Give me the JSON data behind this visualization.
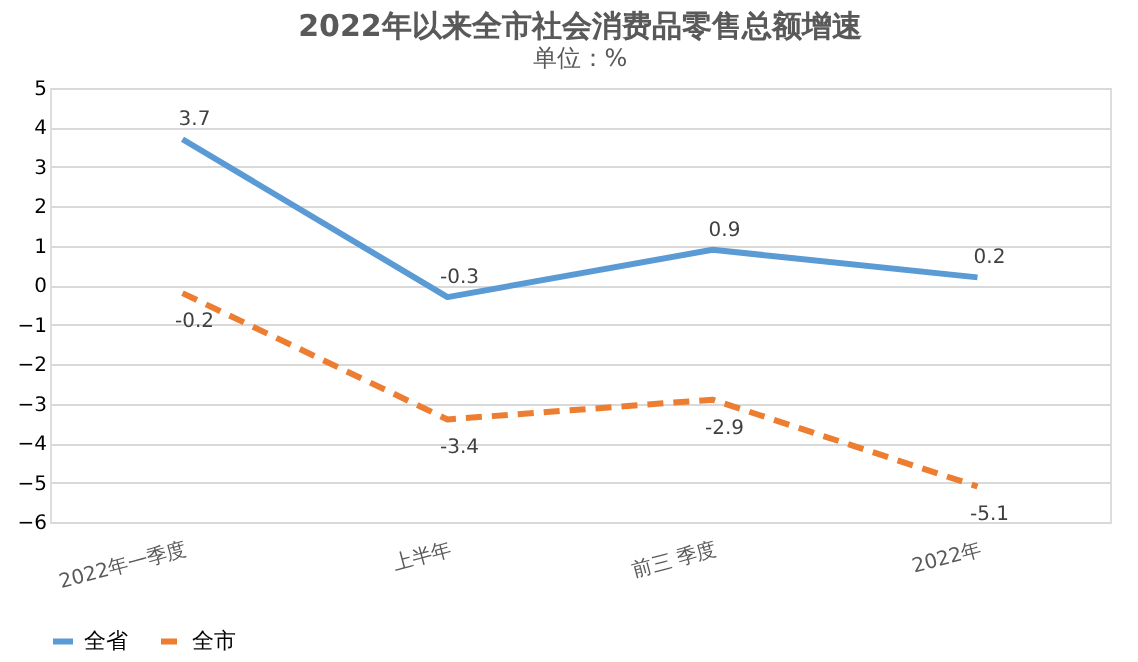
{
  "chart_data": {
    "type": "line",
    "title": "2022年以来全市社会消费品零售总额增速",
    "subtitle": "单位：%",
    "categories": [
      "2022年一季度",
      "上半年",
      "前三 季度",
      "2022年"
    ],
    "series": [
      {
        "name": "全省",
        "color": "#5b9bd5",
        "values": [
          3.7,
          -0.3,
          0.9,
          0.2
        ],
        "line_style": "solid"
      },
      {
        "name": "全市",
        "color": "#ed7d31",
        "values": [
          -0.2,
          -3.4,
          -2.9,
          -5.1
        ],
        "line_style": "dashed"
      }
    ],
    "ylim": [
      -6,
      5
    ],
    "yticks": [
      -6,
      -5,
      -4,
      -3,
      -2,
      -1,
      0,
      1,
      2,
      3,
      4,
      5
    ],
    "grid": "y",
    "legend": "bottom",
    "data_labels": true,
    "marker": "none"
  }
}
